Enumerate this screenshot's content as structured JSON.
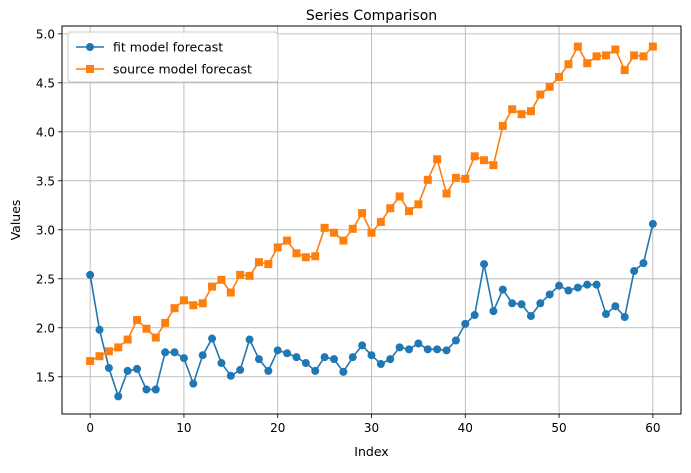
{
  "chart_data": {
    "type": "line",
    "title": "Series Comparison",
    "xlabel": "Index",
    "ylabel": "Values",
    "xlim": [
      -3,
      63
    ],
    "ylim": [
      1.12,
      5.08
    ],
    "xticks": [
      0,
      10,
      20,
      30,
      40,
      50,
      60
    ],
    "yticks": [
      1.5,
      2.0,
      2.5,
      3.0,
      3.5,
      4.0,
      4.5,
      5.0
    ],
    "xtick_labels": [
      "0",
      "10",
      "20",
      "30",
      "40",
      "50",
      "60"
    ],
    "ytick_labels": [
      "1.5",
      "2.0",
      "2.5",
      "3.0",
      "3.5",
      "4.0",
      "4.5",
      "5.0"
    ],
    "grid": true,
    "legend_position": "top-left",
    "x": [
      0,
      1,
      2,
      3,
      4,
      5,
      6,
      7,
      8,
      9,
      10,
      11,
      12,
      13,
      14,
      15,
      16,
      17,
      18,
      19,
      20,
      21,
      22,
      23,
      24,
      25,
      26,
      27,
      28,
      29,
      30,
      31,
      32,
      33,
      34,
      35,
      36,
      37,
      38,
      39,
      40,
      41,
      42,
      43,
      44,
      45,
      46,
      47,
      48,
      49,
      50,
      51,
      52,
      53,
      54,
      55,
      56,
      57,
      58,
      59,
      60
    ],
    "series": [
      {
        "name": "fit model forecast",
        "color": "#1f77b4",
        "marker": "circle",
        "values": [
          2.54,
          1.98,
          1.59,
          1.3,
          1.56,
          1.58,
          1.37,
          1.37,
          1.75,
          1.75,
          1.69,
          1.43,
          1.72,
          1.89,
          1.64,
          1.51,
          1.57,
          1.88,
          1.68,
          1.56,
          1.77,
          1.74,
          1.7,
          1.64,
          1.56,
          1.7,
          1.68,
          1.55,
          1.7,
          1.82,
          1.72,
          1.63,
          1.68,
          1.8,
          1.78,
          1.84,
          1.78,
          1.78,
          1.77,
          1.87,
          2.04,
          2.13,
          2.65,
          2.17,
          2.39,
          2.25,
          2.24,
          2.12,
          2.25,
          2.34,
          2.43,
          2.38,
          2.41,
          2.44,
          2.44,
          2.14,
          2.22,
          2.11,
          2.58,
          2.66,
          3.06
        ]
      },
      {
        "name": "source model forecast",
        "color": "#ff7f0e",
        "marker": "square",
        "values": [
          1.66,
          1.71,
          1.76,
          1.8,
          1.88,
          2.08,
          1.99,
          1.9,
          2.05,
          2.2,
          2.28,
          2.23,
          2.25,
          2.42,
          2.49,
          2.36,
          2.54,
          2.53,
          2.67,
          2.65,
          2.82,
          2.89,
          2.76,
          2.72,
          2.73,
          3.02,
          2.97,
          2.89,
          3.01,
          3.17,
          2.97,
          3.08,
          3.22,
          3.34,
          3.19,
          3.26,
          3.51,
          3.72,
          3.37,
          3.53,
          3.52,
          3.75,
          3.71,
          3.66,
          4.06,
          4.23,
          4.18,
          4.21,
          4.38,
          4.46,
          4.56,
          4.69,
          4.87,
          4.7,
          4.77,
          4.78,
          4.84,
          4.63,
          4.78,
          4.77,
          4.87
        ]
      }
    ]
  }
}
